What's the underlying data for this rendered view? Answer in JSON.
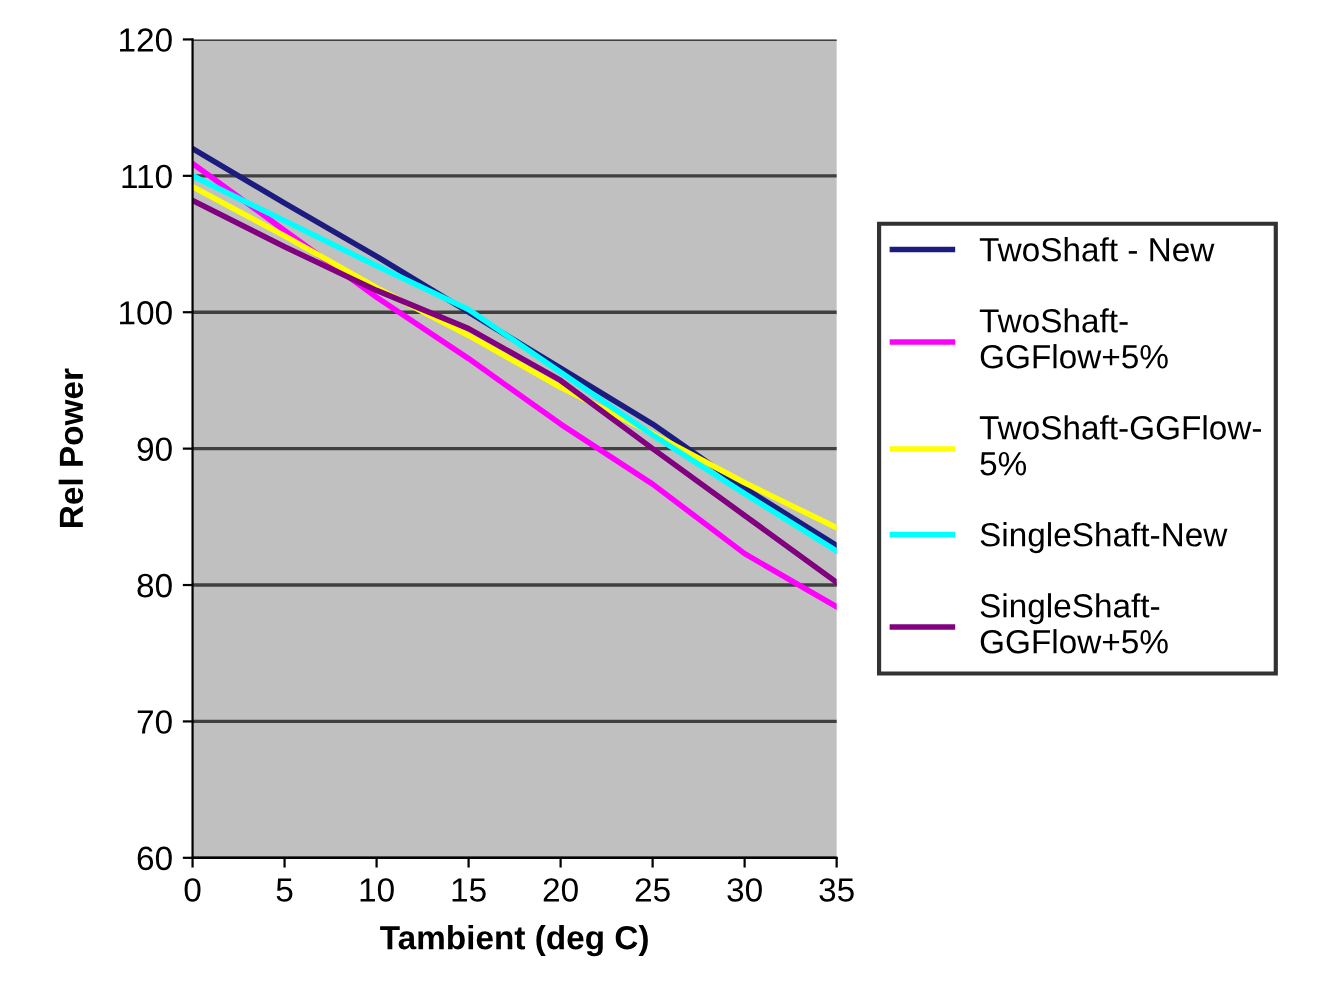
{
  "chart_data": {
    "type": "line",
    "xlabel": "Tambient (deg C)",
    "ylabel": "Rel Power",
    "x": [
      0,
      5,
      10,
      15,
      20,
      25,
      30,
      35
    ],
    "series": [
      {
        "name": "TwoShaft - New",
        "color": "#1c1c80",
        "values": [
          112,
          108,
          104.1,
          100,
          95.9,
          91.8,
          87.1,
          82.9
        ]
      },
      {
        "name": "TwoShaft-\nGGFlow+5%",
        "color": "#ff00ff",
        "values": [
          110.9,
          106,
          101.1,
          96.6,
          91.8,
          87.4,
          82.3,
          78.4
        ]
      },
      {
        "name": "TwoShaft-GGFlow-\n5%",
        "color": "#ffff00",
        "values": [
          109.2,
          105.6,
          101.8,
          98.3,
          94.5,
          91.1,
          87.5,
          84.2
        ]
      },
      {
        "name": "SingleShaft-New",
        "color": "#00ffff",
        "values": [
          110,
          106.7,
          103.4,
          100.2,
          95.6,
          91,
          86.7,
          82.5
        ]
      },
      {
        "name": "SingleShaft-\nGGFlow+5%",
        "color": "#800080",
        "values": [
          108.2,
          104.8,
          101.6,
          98.8,
          95,
          90,
          85.1,
          80.2
        ]
      }
    ],
    "xlim": [
      0,
      35
    ],
    "xticks": [
      0,
      5,
      10,
      15,
      20,
      25,
      30,
      35
    ],
    "ylim": [
      60,
      120
    ],
    "yticks": [
      60,
      70,
      80,
      90,
      100,
      110,
      120
    ],
    "grid": "y",
    "legend": "right",
    "marker": "none",
    "line_style": "solid"
  }
}
